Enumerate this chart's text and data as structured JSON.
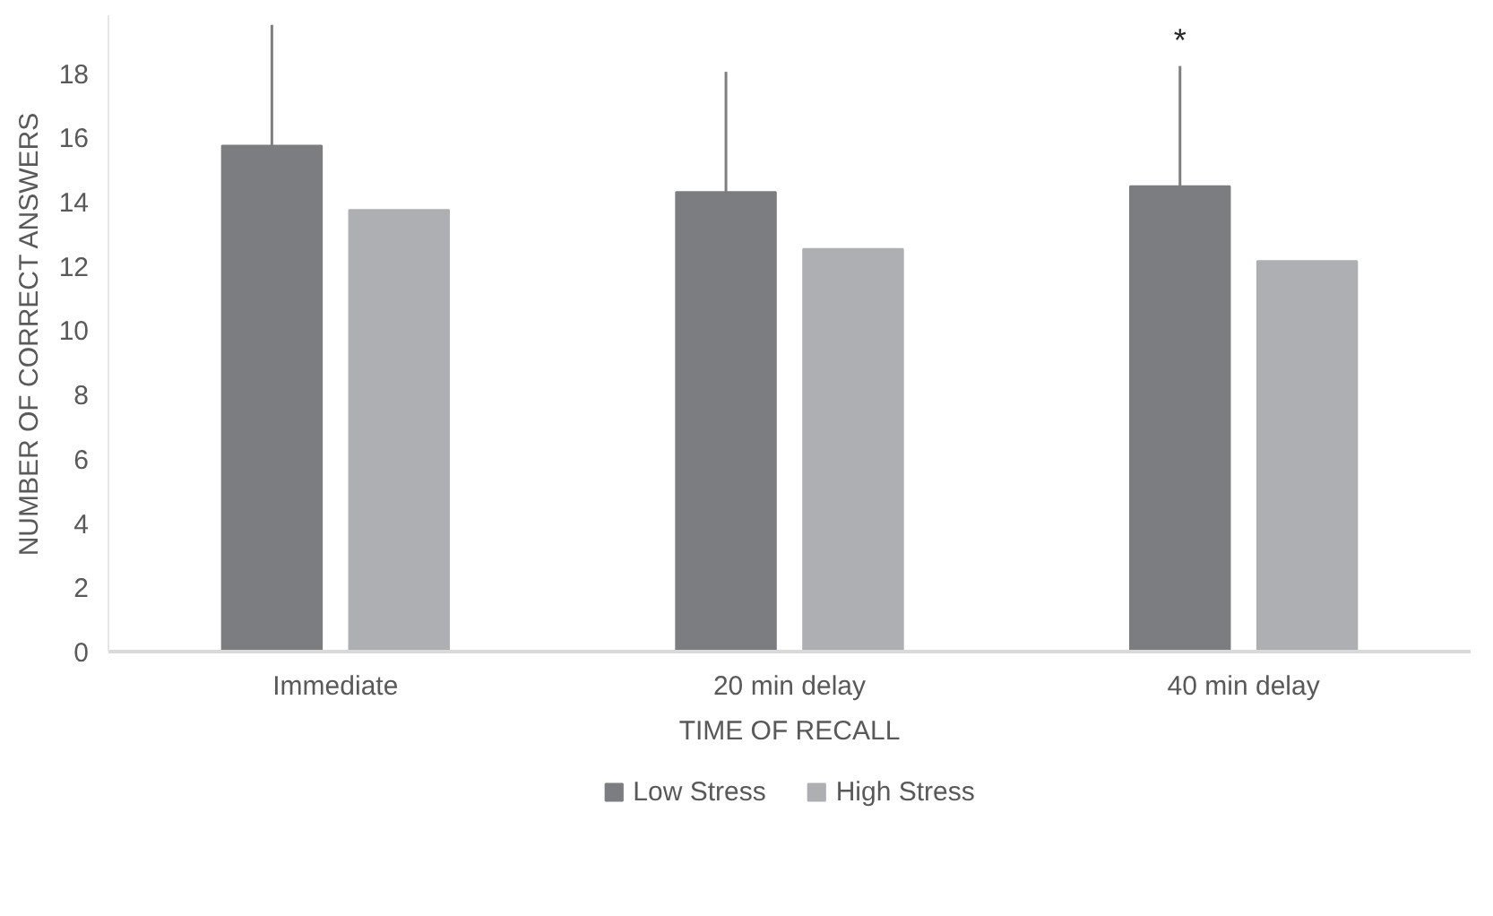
{
  "chart_data": {
    "type": "bar",
    "xlabel": "TIME OF RECALL",
    "ylabel": "NUMBER OF CORRECT ANSWERS",
    "categories": [
      "Immediate",
      "20 min delay",
      "40 min delay"
    ],
    "series": [
      {
        "name": "Low Stress",
        "color": "#7c7d81",
        "values": [
          15.74,
          14.3,
          14.48
        ],
        "errors": [
          [
            15.74,
            19.5
          ],
          [
            14.3,
            18.04
          ],
          [
            14.48,
            18.22
          ]
        ]
      },
      {
        "name": "High Stress",
        "color": "#aeafb3",
        "values": [
          13.74,
          12.53,
          12.15
        ]
      }
    ],
    "ylim": [
      0,
      19.8
    ],
    "yticks": [
      0,
      2,
      4,
      6,
      8,
      10,
      12,
      14,
      16,
      18
    ],
    "grid": false,
    "legend": "bottom",
    "annotations": [
      "*"
    ]
  }
}
